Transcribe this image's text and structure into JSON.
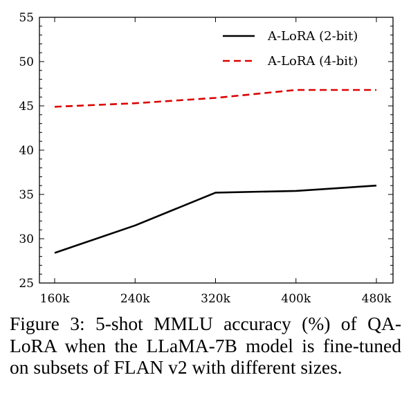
{
  "chart_data": {
    "type": "line",
    "categories": [
      "160k",
      "240k",
      "320k",
      "400k",
      "480k"
    ],
    "series": [
      {
        "name": "A-LoRA (2-bit)",
        "values": [
          28.4,
          31.5,
          35.2,
          35.4,
          36.0
        ],
        "color": "#000000",
        "style": "solid"
      },
      {
        "name": "A-LoRA (4-bit)",
        "values": [
          44.9,
          45.3,
          45.9,
          46.8,
          46.8
        ],
        "color": "#dd0000",
        "style": "dashed"
      }
    ],
    "ylim": [
      25,
      55
    ],
    "yticks": [
      "25",
      "30",
      "35",
      "40",
      "45",
      "50",
      "55"
    ],
    "legend_position": "top-right",
    "grid": false
  },
  "caption": "Figure 3:  5-shot MMLU accuracy (%) of QA-LoRA when the LLaMA-7B model is fine-tuned on subsets of FLAN v2 with different sizes."
}
